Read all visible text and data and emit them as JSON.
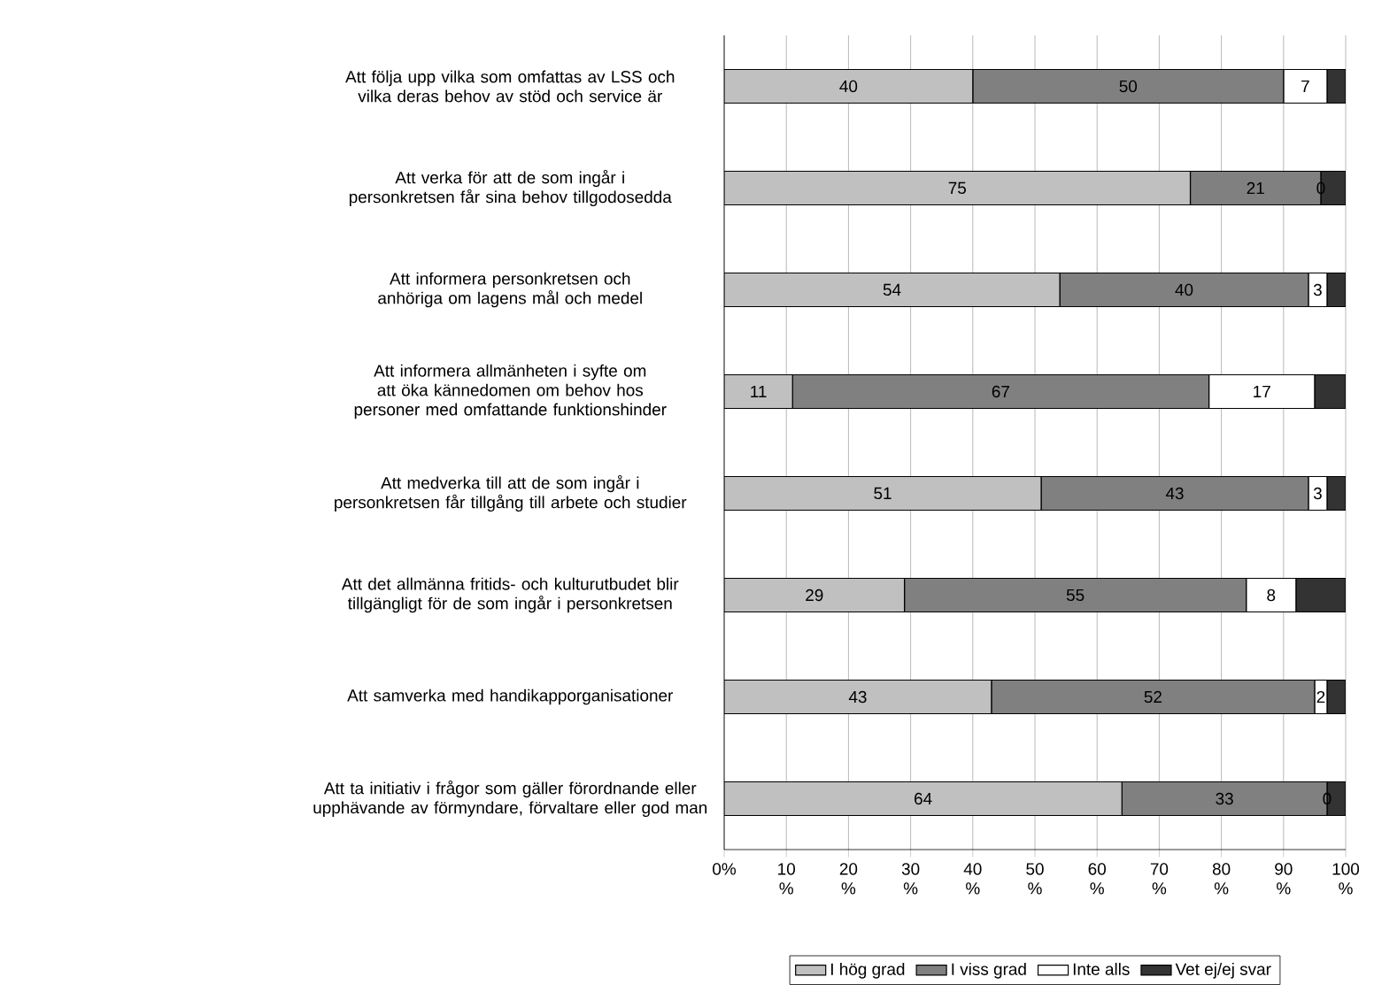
{
  "chart_data": {
    "type": "bar",
    "orientation": "horizontal",
    "stacked": true,
    "categories": [
      "Att följa upp vilka som omfattas av LSS och vilka deras behov av stöd och service är",
      "Att verka för att de som ingår i personkretsen får sina behov tillgodosedda",
      "Att informera personkretsen och anhöriga om lagens mål och medel",
      "Att informera allmänheten i syfte om att öka kännedomen om behov hos personer med omfattande funktionshinder",
      "Att medverka till att de som ingår i personkretsen får tillgång till arbete och studier",
      "Att det allmänna fritids- och kulturutbudet blir tillgängligt för de som ingår i personkretsen",
      "Att samverka med handikapporganisationer",
      "Att ta initiativ i frågor som gäller förordnande eller upphävande av förmyndare, förvaltare eller god man"
    ],
    "series": [
      {
        "name": "I hög grad",
        "color": "#c0c0c0",
        "values": [
          40,
          75,
          54,
          11,
          51,
          29,
          43,
          64
        ],
        "value_labels": [
          "40",
          "75",
          "54",
          "11",
          "51",
          "29",
          "43",
          "64"
        ]
      },
      {
        "name": "I viss grad",
        "color": "#808080",
        "values": [
          50,
          21,
          40,
          67,
          43,
          55,
          52,
          33
        ],
        "value_labels": [
          "50",
          "21",
          "40",
          "67",
          "43",
          "55",
          "52",
          "33"
        ]
      },
      {
        "name": "Inte alls",
        "color": "#ffffff",
        "values": [
          7,
          0,
          3,
          17,
          3,
          8,
          2,
          0
        ],
        "value_labels": [
          "7",
          "0",
          "3",
          "17",
          "3",
          "8",
          "2",
          "0"
        ]
      },
      {
        "name": "Vet ej/ej svar",
        "color": "#333333",
        "values": [
          3,
          4,
          3,
          5,
          3,
          8,
          3,
          3
        ]
      }
    ],
    "xlim": [
      0,
      100
    ],
    "xticks": [
      {
        "value": 0,
        "label": "0%"
      },
      {
        "value": 10,
        "label": "10 %"
      },
      {
        "value": 20,
        "label": "20 %"
      },
      {
        "value": 30,
        "label": "30 %"
      },
      {
        "value": 40,
        "label": "40 %"
      },
      {
        "value": 50,
        "label": "50 %"
      },
      {
        "value": 60,
        "label": "60 %"
      },
      {
        "value": 70,
        "label": "70 %"
      },
      {
        "value": 80,
        "label": "80 %"
      },
      {
        "value": 90,
        "label": "90 %"
      },
      {
        "value": 100,
        "label": "100 %"
      }
    ],
    "grid": "x",
    "legend": "bottom"
  }
}
